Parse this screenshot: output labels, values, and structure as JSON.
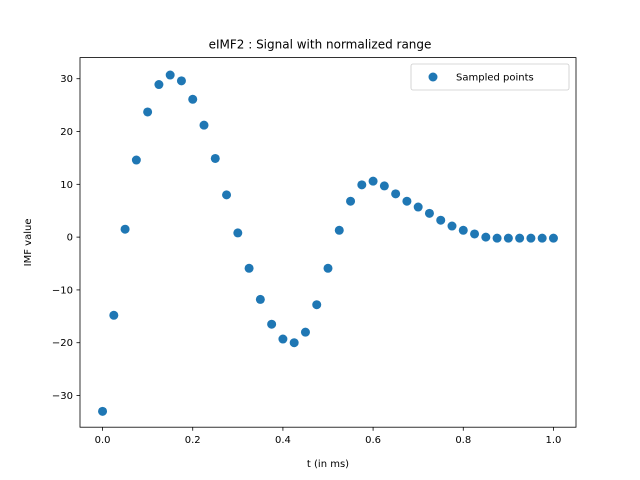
{
  "chart_data": {
    "type": "scatter",
    "title": "eIMF2 : Signal with normalized range",
    "xlabel": "t (in ms)",
    "ylabel": "IMF value",
    "xlim": [
      -0.05,
      1.05
    ],
    "ylim": [
      -36,
      34
    ],
    "xticks": [
      0.0,
      0.2,
      0.4,
      0.6,
      0.8,
      1.0
    ],
    "xtick_labels": [
      "0.0",
      "0.2",
      "0.4",
      "0.6",
      "0.8",
      "1.0"
    ],
    "yticks": [
      -30,
      -20,
      -10,
      0,
      10,
      20,
      30
    ],
    "ytick_labels": [
      "−30",
      "−20",
      "−10",
      "0",
      "10",
      "20",
      "30"
    ],
    "grid": false,
    "legend_position": "top-right",
    "series": [
      {
        "name": "Sampled points",
        "color": "#1f77b4",
        "marker": "circle",
        "x": [
          0.0,
          0.025,
          0.05,
          0.075,
          0.1,
          0.125,
          0.15,
          0.175,
          0.2,
          0.225,
          0.25,
          0.275,
          0.3,
          0.325,
          0.35,
          0.375,
          0.4,
          0.425,
          0.45,
          0.475,
          0.5,
          0.525,
          0.55,
          0.575,
          0.6,
          0.625,
          0.65,
          0.675,
          0.7,
          0.725,
          0.75,
          0.775,
          0.8,
          0.825,
          0.85,
          0.875,
          0.9,
          0.925,
          0.95,
          0.975,
          1.0
        ],
        "y": [
          -33,
          -14.8,
          1.5,
          14.6,
          23.7,
          28.9,
          30.7,
          29.6,
          26.1,
          21.2,
          14.9,
          8.0,
          0.8,
          -5.9,
          -11.8,
          -16.5,
          -19.3,
          -20.0,
          -18.0,
          -12.8,
          -5.9,
          1.3,
          6.8,
          9.9,
          10.6,
          9.7,
          8.2,
          6.8,
          5.7,
          4.5,
          3.2,
          2.1,
          1.3,
          0.6,
          0.0,
          -0.2,
          -0.2,
          -0.2,
          -0.2,
          -0.2,
          -0.2
        ]
      }
    ]
  }
}
